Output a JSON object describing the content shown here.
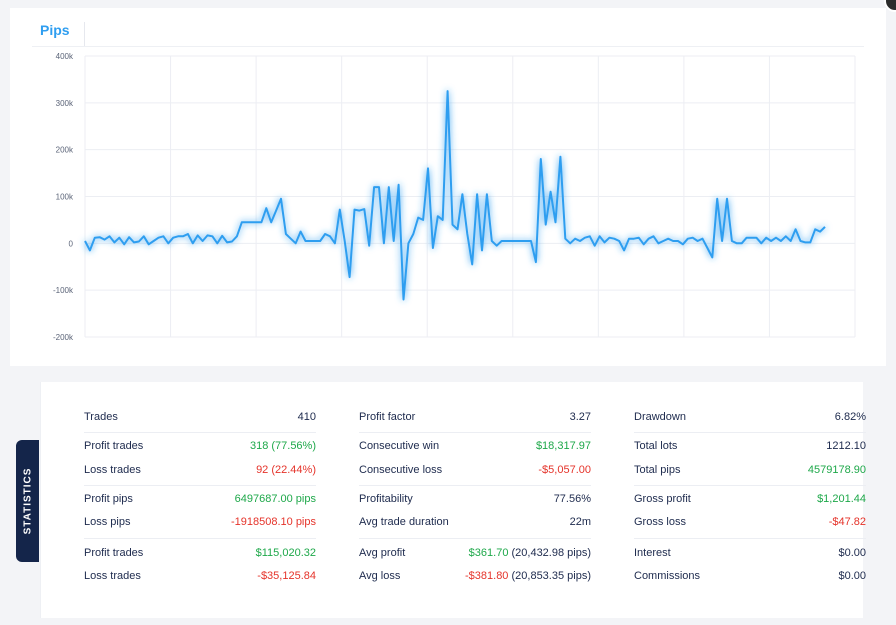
{
  "chart_tab_label": "Pips",
  "colors": {
    "line": "#2f9ef0",
    "accent": "#2f9ef0",
    "positive": "#1ea84a",
    "negative": "#e5332a",
    "navy": "#14254a"
  },
  "chart_data": {
    "type": "line",
    "title": "",
    "xlabel": "",
    "ylabel": "",
    "ylim": [
      -200000,
      400000
    ],
    "ytick_labels": [
      "400k",
      "300k",
      "200k",
      "100k",
      "0",
      "-100k",
      "-200k"
    ],
    "grid": true,
    "legend": "none",
    "series": [
      {
        "values": [
          5000,
          -15000,
          12000,
          13000,
          8000,
          15000,
          2000,
          12000,
          -2000,
          13000,
          2000,
          4000,
          15000,
          -2000,
          5000,
          12000,
          15000,
          0,
          12000,
          15000,
          15000,
          20000,
          0,
          17000,
          5000,
          17000,
          15000,
          0,
          16000,
          2000,
          4000,
          15000,
          45000,
          45000,
          45000,
          45000,
          45000,
          75000,
          45000,
          70000,
          95000,
          20000,
          10000,
          0,
          25000,
          5000,
          5000,
          5000,
          5000,
          20000,
          15000,
          0,
          72000,
          5000,
          -72000,
          72000,
          70000,
          73000,
          -5000,
          120000,
          120000,
          0,
          120000,
          5000,
          125000,
          -120000,
          0,
          20000,
          55000,
          50000,
          160000,
          -10000,
          58000,
          50000,
          325000,
          40000,
          30000,
          105000,
          20000,
          -45000,
          105000,
          -15000,
          105000,
          5000,
          -5000,
          5000,
          5000,
          5000,
          5000,
          5000,
          5000,
          5000,
          -40000,
          180000,
          40000,
          110000,
          45000,
          185000,
          10000,
          0,
          10000,
          5000,
          12000,
          15000,
          -5000,
          15000,
          2000,
          12000,
          10000,
          5000,
          -15000,
          10000,
          10000,
          12000,
          -2000,
          10000,
          15000,
          0,
          5000,
          10000,
          5000,
          5000,
          -2000,
          10000,
          12000,
          5000,
          10000,
          -10000,
          -30000,
          95000,
          5000,
          95000,
          5000,
          0,
          0,
          12000,
          12000,
          12000,
          0,
          12000,
          5000,
          12000,
          5000,
          15000,
          5000,
          30000,
          5000,
          2000,
          2000,
          30000,
          25000,
          35000
        ],
        "color": "#2f9ef0"
      }
    ]
  },
  "stats_tab_label": "STATISTICS",
  "stats": {
    "col0": {
      "trades": {
        "label": "Trades",
        "value": "410"
      },
      "profit_trades": {
        "label": "Profit trades",
        "value": "318 (77.56%)"
      },
      "loss_trades": {
        "label": "Loss trades",
        "value": "92 (22.44%)"
      },
      "profit_pips": {
        "label": "Profit pips",
        "value": "6497687.00 pips"
      },
      "loss_pips": {
        "label": "Loss pips",
        "value": "-1918508.10 pips"
      },
      "profit_trades_money": {
        "label": "Profit trades",
        "value": "$115,020.32"
      },
      "loss_trades_money": {
        "label": "Loss trades",
        "value": "-$35,125.84"
      }
    },
    "col1": {
      "profit_factor": {
        "label": "Profit factor",
        "value": "3.27"
      },
      "consecutive_win": {
        "label": "Consecutive win",
        "value": "$18,317.97"
      },
      "consecutive_loss": {
        "label": "Consecutive loss",
        "value": "-$5,057.00"
      },
      "profitability": {
        "label": "Profitability",
        "value": "77.56%"
      },
      "avg_trade_duration": {
        "label": "Avg trade duration",
        "value": "22m"
      },
      "avg_profit": {
        "label": "Avg profit",
        "value": "$361.70",
        "extra": " (20,432.98 pips)"
      },
      "avg_loss": {
        "label": "Avg loss",
        "value": "-$381.80",
        "extra": " (20,853.35 pips)"
      }
    },
    "col2": {
      "drawdown": {
        "label": "Drawdown",
        "value": "6.82%"
      },
      "total_lots": {
        "label": "Total lots",
        "value": "1212.10"
      },
      "total_pips": {
        "label": "Total pips",
        "value": "4579178.90"
      },
      "gross_profit": {
        "label": "Gross profit",
        "value": "$1,201.44"
      },
      "gross_loss": {
        "label": "Gross loss",
        "value": "-$47.82"
      },
      "interest": {
        "label": "Interest",
        "value": "$0.00"
      },
      "commissions": {
        "label": "Commissions",
        "value": "$0.00"
      }
    }
  }
}
